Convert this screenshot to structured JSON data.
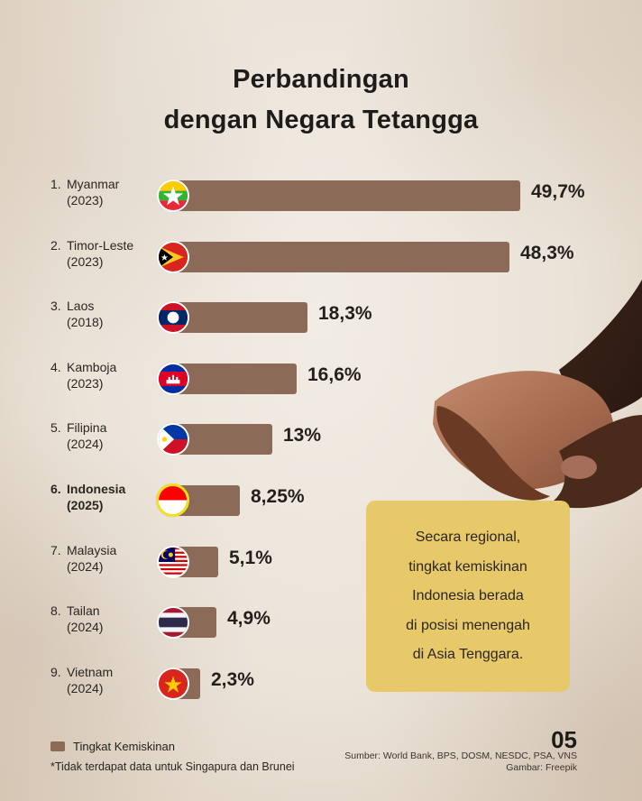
{
  "title": {
    "line1": "Perbandingan",
    "line2": "dengan Negara Tetangga"
  },
  "colors": {
    "bar": "#8b6a58",
    "callout": "#e8c96a",
    "highlight_ring": "#f2e11a",
    "background": "#ede6dc"
  },
  "rows": [
    {
      "rank": "1.",
      "country": "Myanmar",
      "year": "(2023)",
      "value_label": "49,7%",
      "value": 49.7,
      "flag": "myanmar-flag-icon",
      "bar_end": 577,
      "highlight": false
    },
    {
      "rank": "2.",
      "country": "Timor-Leste",
      "year": "(2023)",
      "value_label": "48,3%",
      "value": 48.3,
      "flag": "timor-leste-flag-icon",
      "bar_end": 565,
      "highlight": false
    },
    {
      "rank": "3.",
      "country": "Laos",
      "year": "(2018)",
      "value_label": "18,3%",
      "value": 18.3,
      "flag": "laos-flag-icon",
      "bar_end": 341,
      "highlight": false
    },
    {
      "rank": "4.",
      "country": "Kamboja",
      "year": "(2023)",
      "value_label": "16,6%",
      "value": 16.6,
      "flag": "cambodia-flag-icon",
      "bar_end": 329,
      "highlight": false
    },
    {
      "rank": "5.",
      "country": "Filipina",
      "year": "(2024)",
      "value_label": "13%",
      "value": 13,
      "flag": "philippines-flag-icon",
      "bar_end": 302,
      "highlight": false
    },
    {
      "rank": "6.",
      "country": "Indonesia",
      "year": "(2025)",
      "value_label": "8,25%",
      "value": 8.25,
      "flag": "indonesia-flag-icon",
      "bar_end": 266,
      "highlight": true
    },
    {
      "rank": "7.",
      "country": "Malaysia",
      "year": "(2024)",
      "value_label": "5,1%",
      "value": 5.1,
      "flag": "malaysia-flag-icon",
      "bar_end": 242,
      "highlight": false
    },
    {
      "rank": "8.",
      "country": "Tailan",
      "year": "(2024)",
      "value_label": "4,9%",
      "value": 4.9,
      "flag": "thailand-flag-icon",
      "bar_end": 240,
      "highlight": false
    },
    {
      "rank": "9.",
      "country": "Vietnam",
      "year": "(2024)",
      "value_label": "2,3%",
      "value": 2.3,
      "flag": "vietnam-flag-icon",
      "bar_end": 222,
      "highlight": false
    }
  ],
  "callout": {
    "lines": [
      "Secara regional,",
      "tingkat kemiskinan",
      "Indonesia berada",
      "di posisi menengah",
      "di Asia Tenggara."
    ]
  },
  "legend": {
    "label": "Tingkat Kemiskinan"
  },
  "footnote": "*Tidak terdapat data untuk Singapura dan Brunei",
  "page_number": "05",
  "source": "Sumber: World Bank, BPS, DOSM, NESDC, PSA, VNS",
  "image_credit": "Gambar: Freepik",
  "chart_data": {
    "type": "bar",
    "orientation": "horizontal",
    "title": "Perbandingan dengan Negara Tetangga",
    "categories": [
      "Myanmar (2023)",
      "Timor-Leste (2023)",
      "Laos (2018)",
      "Kamboja (2023)",
      "Filipina (2024)",
      "Indonesia (2025)",
      "Malaysia (2024)",
      "Tailan (2024)",
      "Vietnam (2024)"
    ],
    "series": [
      {
        "name": "Tingkat Kemiskinan",
        "values": [
          49.7,
          48.3,
          18.3,
          16.6,
          13,
          8.25,
          5.1,
          4.9,
          2.3
        ]
      }
    ],
    "value_labels": [
      "49,7%",
      "48,3%",
      "18,3%",
      "16,6%",
      "13%",
      "8,25%",
      "5,1%",
      "4,9%",
      "2,3%"
    ],
    "xlabel": "",
    "ylabel": "",
    "grid": false,
    "legend_position": "bottom-left",
    "highlighted_category": "Indonesia (2025)",
    "annotations": [
      "*Tidak terdapat data untuk Singapura dan Brunei",
      "Secara regional, tingkat kemiskinan Indonesia berada di posisi menengah di Asia Tenggara."
    ]
  }
}
